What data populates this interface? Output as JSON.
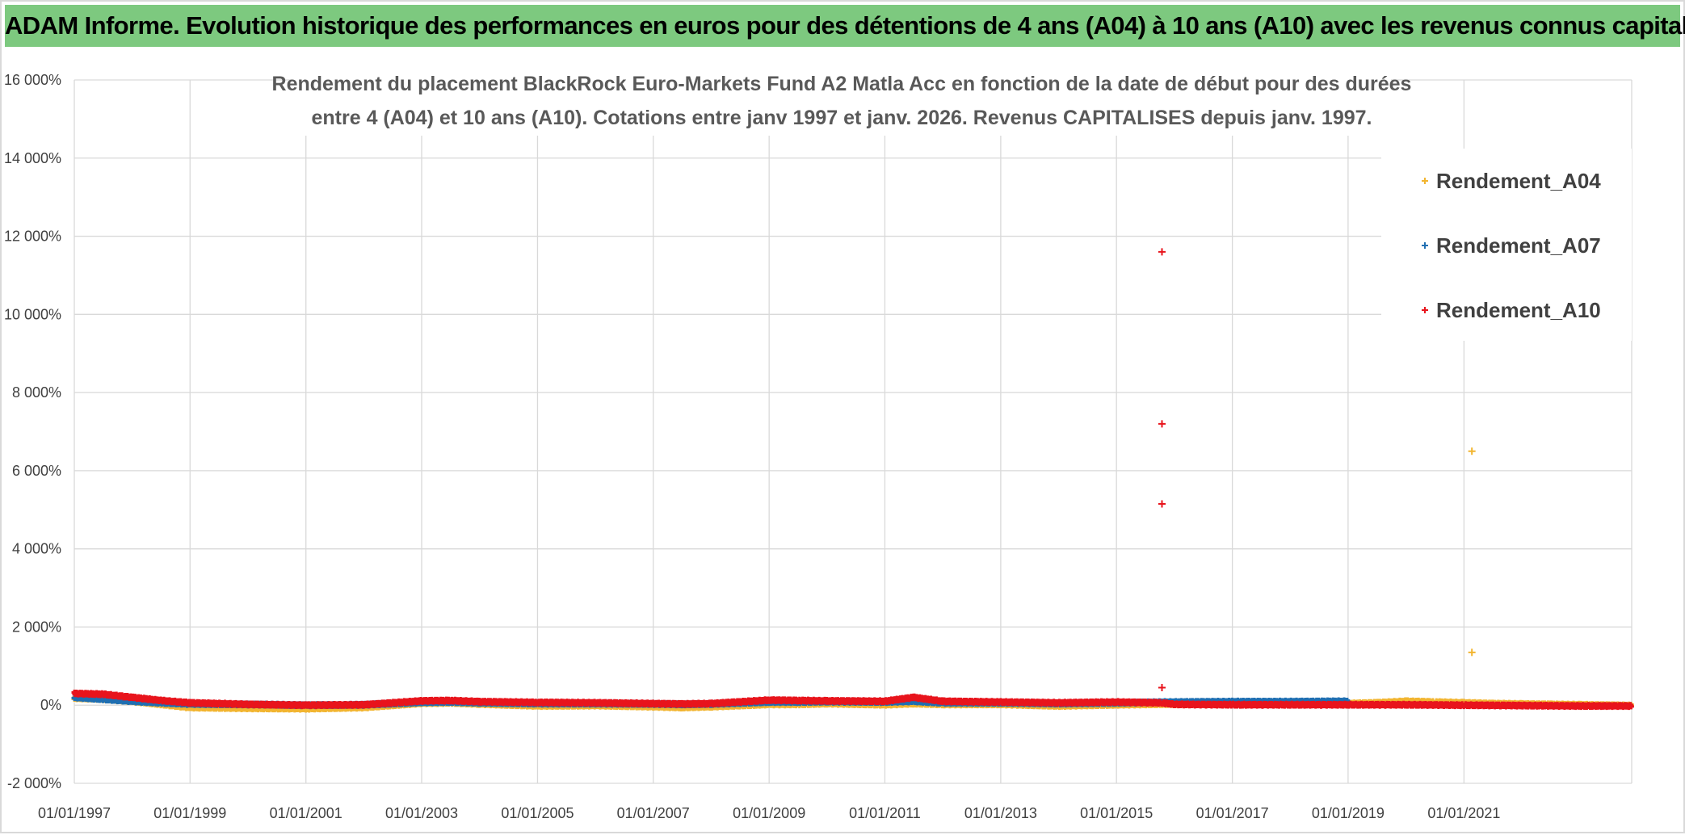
{
  "banner": {
    "title": "ADAM Informe. Evolution historique des performances en euros pour des détentions de 4 ans (A04) à 10 ans (A10) avec les revenus connus capitalisés"
  },
  "chart_data": {
    "type": "scatter",
    "title_line1": "Rendement du placement BlackRock Euro-Markets Fund A2 Matla Acc en fonction de la date de début pour des durées",
    "title_line2": "entre 4 (A04) et 10 ans (A10). Cotations entre janv 1997 et janv. 2026. Revenus CAPITALISES depuis janv. 1997.",
    "xlabel": "",
    "ylabel": "",
    "x_axis": {
      "type": "date",
      "range": [
        "1997-01-01",
        "2023-11-25"
      ],
      "ticks": [
        "01/01/1997",
        "01/01/1999",
        "01/01/2001",
        "01/01/2003",
        "01/01/2005",
        "01/01/2007",
        "01/01/2009",
        "01/01/2011",
        "01/01/2013",
        "01/01/2015",
        "01/01/2017",
        "01/01/2019",
        "01/01/2021"
      ]
    },
    "y_axis": {
      "range": [
        -2000,
        16000
      ],
      "ticks": [
        -2000,
        0,
        2000,
        4000,
        6000,
        8000,
        10000,
        12000,
        14000,
        16000
      ],
      "tick_labels": [
        "-2 000%",
        "0%",
        "2 000%",
        "4 000%",
        "6 000%",
        "8 000%",
        "10 000%",
        "12 000%",
        "14 000%",
        "16 000%"
      ]
    },
    "grid": true,
    "legend": {
      "position": "top-right",
      "marker": "+",
      "entries": [
        "Rendement_A04",
        "Rendement_A07",
        "Rendement_A10"
      ]
    },
    "series": [
      {
        "name": "Rendement_A04",
        "color": "#f2b530",
        "trend_x": [
          "1997-01-01",
          "1997-07-01",
          "1998-01-01",
          "1998-07-01",
          "1999-01-01",
          "2000-01-01",
          "2001-01-01",
          "2002-01-01",
          "2003-01-01",
          "2003-07-01",
          "2004-01-01",
          "2005-01-01",
          "2006-01-01",
          "2007-01-01",
          "2007-07-01",
          "2008-01-01",
          "2009-01-01",
          "2009-07-01",
          "2010-01-01",
          "2011-01-01",
          "2011-07-01",
          "2012-01-01",
          "2013-01-01",
          "2014-01-01",
          "2015-01-01",
          "2016-01-01",
          "2017-01-01",
          "2018-01-01",
          "2019-01-01",
          "2019-07-01",
          "2020-01-01",
          "2020-07-01",
          "2021-01-01",
          "2021-07-01",
          "2022-01-01",
          "2022-07-01",
          "2023-01-01",
          "2023-11-25"
        ],
        "trend_y": [
          180,
          160,
          100,
          20,
          -60,
          -80,
          -90,
          -60,
          50,
          60,
          30,
          -20,
          -10,
          -40,
          -60,
          -40,
          20,
          20,
          40,
          10,
          40,
          20,
          20,
          -20,
          10,
          30,
          30,
          40,
          40,
          60,
          100,
          80,
          60,
          40,
          30,
          20,
          10,
          -10
        ],
        "outliers": [
          {
            "x": "2021-02-20",
            "y": 6500
          },
          {
            "x": "2021-02-20",
            "y": 1350
          }
        ]
      },
      {
        "name": "Rendement_A07",
        "color": "#1f6fb2",
        "trend_x": [
          "1997-01-01",
          "1997-07-01",
          "1998-01-01",
          "1998-07-01",
          "1999-01-01",
          "2000-01-01",
          "2001-01-01",
          "2002-01-01",
          "2003-01-01",
          "2003-07-01",
          "2004-01-01",
          "2005-01-01",
          "2006-01-01",
          "2007-01-01",
          "2007-07-01",
          "2008-01-01",
          "2009-01-01",
          "2009-07-01",
          "2010-01-01",
          "2011-01-01",
          "2011-07-01",
          "2012-01-01",
          "2013-01-01",
          "2014-01-01",
          "2015-01-01",
          "2016-01-01",
          "2017-01-01",
          "2018-01-01",
          "2019-01-01"
        ],
        "trend_y": [
          200,
          150,
          100,
          60,
          30,
          20,
          0,
          10,
          70,
          80,
          60,
          40,
          40,
          30,
          20,
          30,
          80,
          80,
          90,
          80,
          100,
          60,
          60,
          40,
          60,
          80,
          90,
          90,
          100
        ],
        "outliers": []
      },
      {
        "name": "Rendement_A10",
        "color": "#e8141c",
        "trend_x": [
          "1997-01-01",
          "1997-07-01",
          "1998-01-01",
          "1998-07-01",
          "1999-01-01",
          "2000-01-01",
          "2001-01-01",
          "2002-01-01",
          "2003-01-01",
          "2003-07-01",
          "2004-01-01",
          "2005-01-01",
          "2006-01-01",
          "2007-01-01",
          "2007-07-01",
          "2008-01-01",
          "2009-01-01",
          "2009-07-01",
          "2010-01-01",
          "2011-01-01",
          "2011-07-01",
          "2012-01-01",
          "2013-01-01",
          "2014-01-01",
          "2015-01-01",
          "2015-10-15",
          "2016-01-01",
          "2017-01-01",
          "2018-01-01",
          "2019-01-01",
          "2020-01-01",
          "2021-01-01",
          "2022-01-01",
          "2023-01-01",
          "2023-11-25"
        ],
        "trend_y": [
          300,
          280,
          200,
          120,
          60,
          20,
          0,
          10,
          110,
          120,
          90,
          70,
          60,
          40,
          30,
          40,
          130,
          120,
          110,
          100,
          200,
          100,
          80,
          60,
          80,
          60,
          20,
          10,
          10,
          10,
          10,
          0,
          -10,
          -20,
          -20
        ],
        "outliers": [
          {
            "x": "2015-10-15",
            "y": 11600
          },
          {
            "x": "2015-10-15",
            "y": 7200
          },
          {
            "x": "2015-10-15",
            "y": 5150
          },
          {
            "x": "2015-10-15",
            "y": 450
          }
        ]
      }
    ]
  }
}
